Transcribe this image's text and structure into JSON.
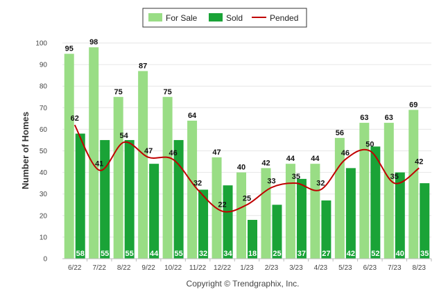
{
  "chart_data": {
    "type": "bar",
    "categories": [
      "6/22",
      "7/22",
      "8/22",
      "9/22",
      "10/22",
      "11/22",
      "12/22",
      "1/23",
      "2/23",
      "3/23",
      "4/23",
      "5/23",
      "6/23",
      "7/23",
      "8/23"
    ],
    "series": [
      {
        "name": "For Sale",
        "type": "bar",
        "color": "#99dd85",
        "values": [
          95,
          98,
          75,
          87,
          75,
          64,
          47,
          40,
          42,
          44,
          44,
          56,
          63,
          63,
          69
        ]
      },
      {
        "name": "Sold",
        "type": "bar",
        "color": "#1aa337",
        "values": [
          58,
          55,
          55,
          44,
          55,
          32,
          34,
          18,
          25,
          37,
          27,
          42,
          52,
          40,
          35
        ]
      },
      {
        "name": "Pended",
        "type": "line",
        "color": "#c00000",
        "values": [
          62,
          41,
          54,
          47,
          46,
          32,
          22,
          25,
          33,
          35,
          32,
          46,
          50,
          35,
          42
        ]
      }
    ],
    "ylabel": "Number of Homes",
    "xlabel": "",
    "ylim": [
      0,
      100
    ],
    "yticks": [
      0,
      10,
      20,
      30,
      40,
      50,
      60,
      70,
      80,
      90,
      100
    ],
    "grid": true,
    "legend": "top-center"
  },
  "footer": {
    "credit": "Copyright © Trendgraphix, Inc."
  }
}
